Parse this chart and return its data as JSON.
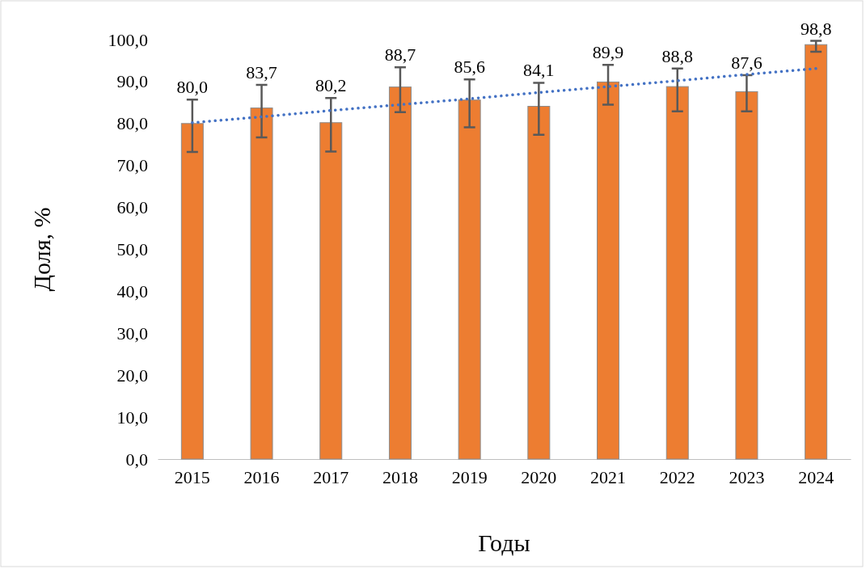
{
  "chart_data": {
    "type": "bar",
    "xlabel": "Годы",
    "ylabel": "Доля, %",
    "categories": [
      "2015",
      "2016",
      "2017",
      "2018",
      "2019",
      "2020",
      "2021",
      "2022",
      "2023",
      "2024"
    ],
    "series": [
      {
        "color": "#ed7d31",
        "values": [
          80.0,
          83.7,
          80.2,
          88.7,
          85.6,
          84.1,
          89.9,
          88.8,
          87.6,
          98.8
        ],
        "value_labels": [
          "80,0",
          "83,7",
          "80,2",
          "88,7",
          "85,6",
          "84,1",
          "89,9",
          "88,8",
          "87,6",
          "98,8"
        ],
        "errors": [
          [
            73.2,
            85.7
          ],
          [
            76.7,
            89.2
          ],
          [
            73.3,
            86.1
          ],
          [
            82.7,
            93.4
          ],
          [
            79.1,
            90.5
          ],
          [
            77.3,
            89.7
          ],
          [
            84.5,
            94.0
          ],
          [
            82.9,
            93.1
          ],
          [
            82.9,
            91.5
          ],
          [
            97.1,
            99.7
          ]
        ]
      },
      {
        "type": "line",
        "color": "#4472c4",
        "line_style": "dotted",
        "marker": "none",
        "values": [
          80.2,
          81.6,
          83.1,
          84.5,
          85.9,
          87.4,
          88.8,
          90.2,
          91.7,
          93.1
        ]
      }
    ],
    "ylim": [
      0,
      100
    ],
    "yticks": [
      {
        "value": 0,
        "label": "0,0"
      },
      {
        "value": 10,
        "label": "10,0"
      },
      {
        "value": 20,
        "label": "20,0"
      },
      {
        "value": 30,
        "label": "30,0"
      },
      {
        "value": 40,
        "label": "40,0"
      },
      {
        "value": 50,
        "label": "50,0"
      },
      {
        "value": 60,
        "label": "60,0"
      },
      {
        "value": 70,
        "label": "70,0"
      },
      {
        "value": 80,
        "label": "80,0"
      },
      {
        "value": 90,
        "label": "90,0"
      },
      {
        "value": 100,
        "label": "100,0"
      }
    ],
    "grid": false
  }
}
